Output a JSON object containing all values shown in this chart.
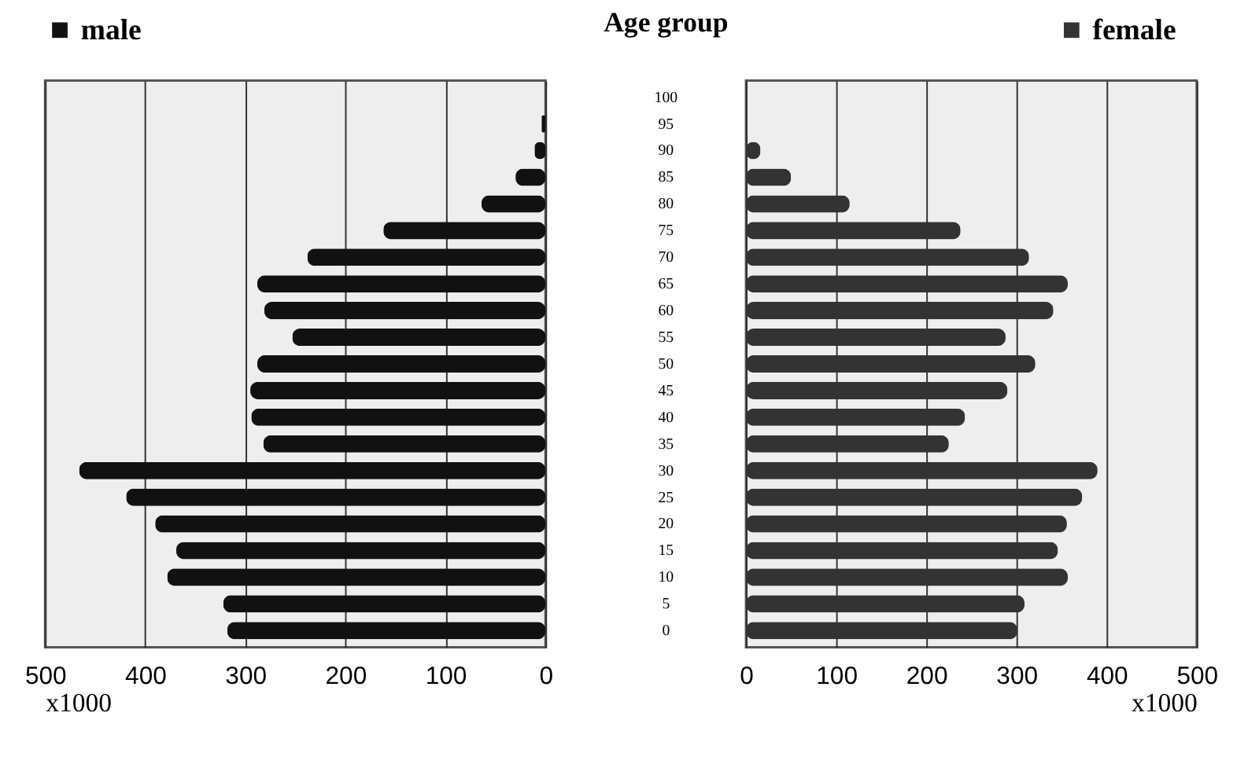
{
  "chart_data": [
    {
      "type": "bar",
      "orientation": "horizontal",
      "categories": [
        "100",
        "95",
        "90",
        "85",
        "80",
        "75",
        "70",
        "65",
        "60",
        "55",
        "50",
        "45",
        "40",
        "35",
        "30",
        "25",
        "20",
        "15",
        "10",
        "5",
        "0"
      ],
      "series": [
        {
          "name": "male",
          "color": "#111111",
          "values": [
            null,
            4,
            11,
            30,
            64,
            162,
            238,
            288,
            281,
            253,
            288,
            295,
            294,
            282,
            466,
            419,
            390,
            369,
            378,
            322,
            318
          ]
        }
      ],
      "xlim": [
        500,
        0
      ],
      "xticks": [
        500,
        400,
        300,
        200,
        100,
        0
      ],
      "xlabel": "x1000",
      "grid": "x",
      "legend": "top left",
      "tick_labels": "x"
    },
    {
      "type": "bar",
      "orientation": "horizontal",
      "categories": [
        "100",
        "95",
        "90",
        "85",
        "80",
        "75",
        "70",
        "65",
        "60",
        "55",
        "50",
        "45",
        "40",
        "35",
        "30",
        "25",
        "20",
        "15",
        "10",
        "5",
        "0"
      ],
      "series": [
        {
          "name": "female",
          "color": "#333333",
          "values": [
            null,
            null,
            16,
            50,
            115,
            238,
            314,
            357,
            341,
            288,
            321,
            290,
            243,
            225,
            390,
            373,
            356,
            346,
            357,
            309,
            301
          ]
        }
      ],
      "xlim": [
        0,
        500
      ],
      "xticks": [
        0,
        100,
        200,
        300,
        400,
        500
      ],
      "xlabel": "x1000",
      "ylabel": "Age group",
      "grid": "x",
      "legend": "top right"
    }
  ]
}
